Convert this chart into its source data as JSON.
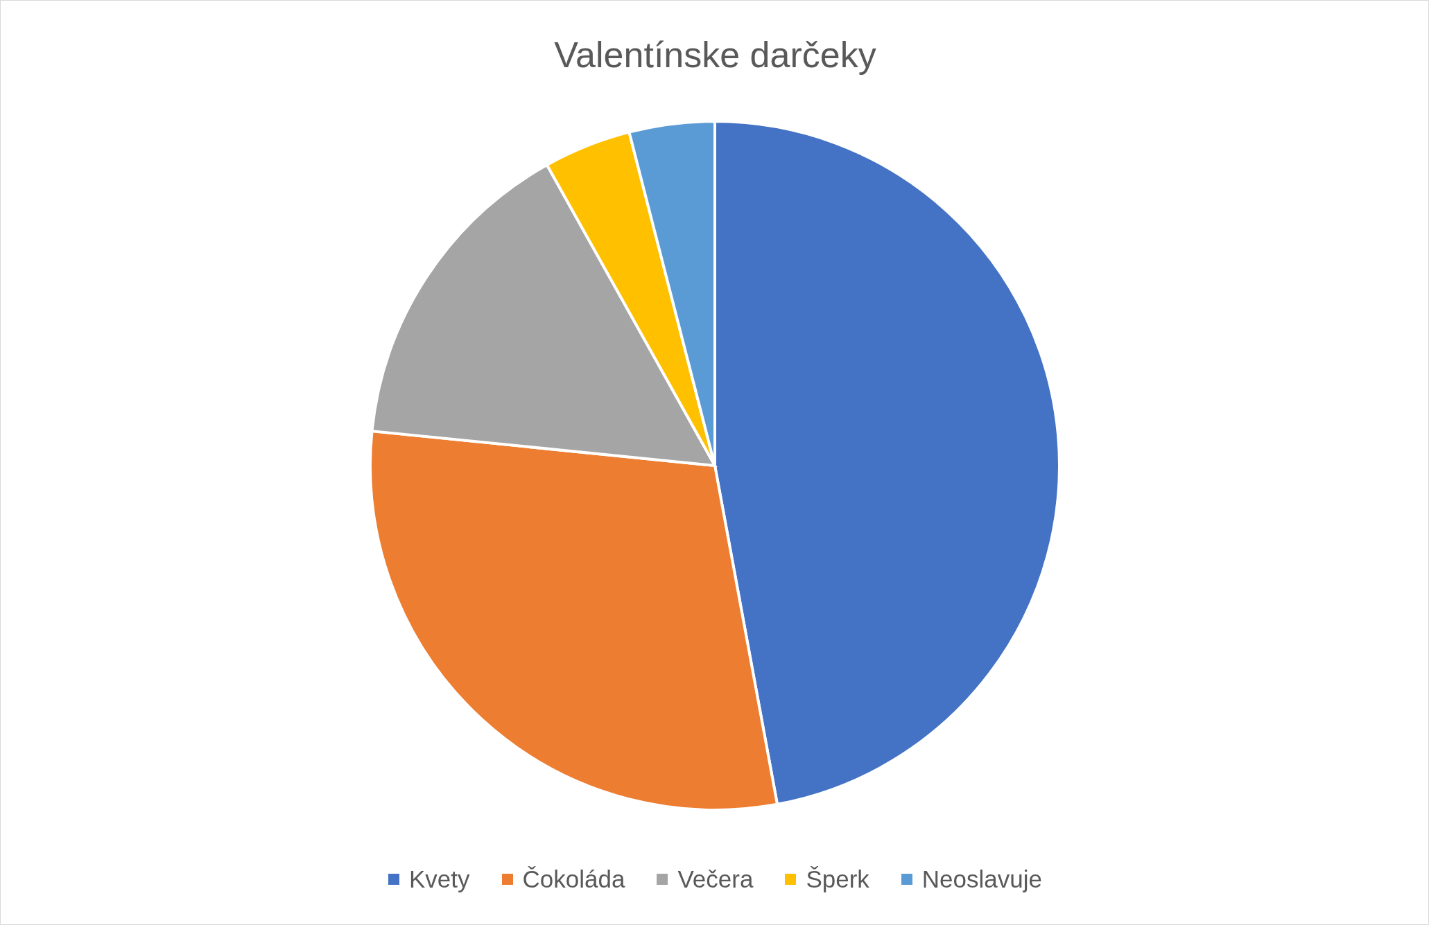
{
  "chart_data": {
    "type": "pie",
    "title": "Valentínske darčeky",
    "categories": [
      "Kvety",
      "Čokoláda",
      "Večera",
      "Šperk",
      "Neoslavuje"
    ],
    "values": [
      47.1,
      29.5,
      15.3,
      4.1,
      4.0
    ],
    "colors": [
      "#4472c4",
      "#ed7d31",
      "#a5a5a5",
      "#ffc000",
      "#5b9bd5"
    ],
    "legend": "bottom"
  }
}
